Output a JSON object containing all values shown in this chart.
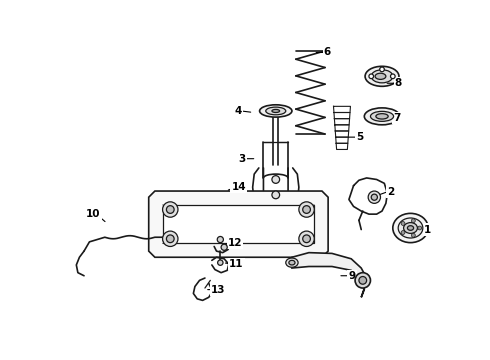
{
  "background_color": "#ffffff",
  "line_color": "#1a1a1a",
  "label_color": "#000000",
  "figsize": [
    4.9,
    3.6
  ],
  "dpi": 100,
  "labels_data": [
    [
      1,
      455,
      242,
      470,
      242
    ],
    [
      2,
      408,
      198,
      422,
      193
    ],
    [
      3,
      252,
      150,
      237,
      150
    ],
    [
      4,
      248,
      90,
      232,
      88
    ],
    [
      5,
      368,
      122,
      382,
      122
    ],
    [
      6,
      326,
      12,
      340,
      12
    ],
    [
      7,
      415,
      97,
      430,
      97
    ],
    [
      8,
      418,
      52,
      432,
      52
    ],
    [
      9,
      358,
      302,
      372,
      302
    ],
    [
      10,
      58,
      234,
      44,
      222
    ],
    [
      11,
      208,
      285,
      222,
      287
    ],
    [
      12,
      207,
      262,
      220,
      260
    ],
    [
      13,
      185,
      320,
      198,
      320
    ],
    [
      14,
      212,
      192,
      225,
      187
    ]
  ]
}
